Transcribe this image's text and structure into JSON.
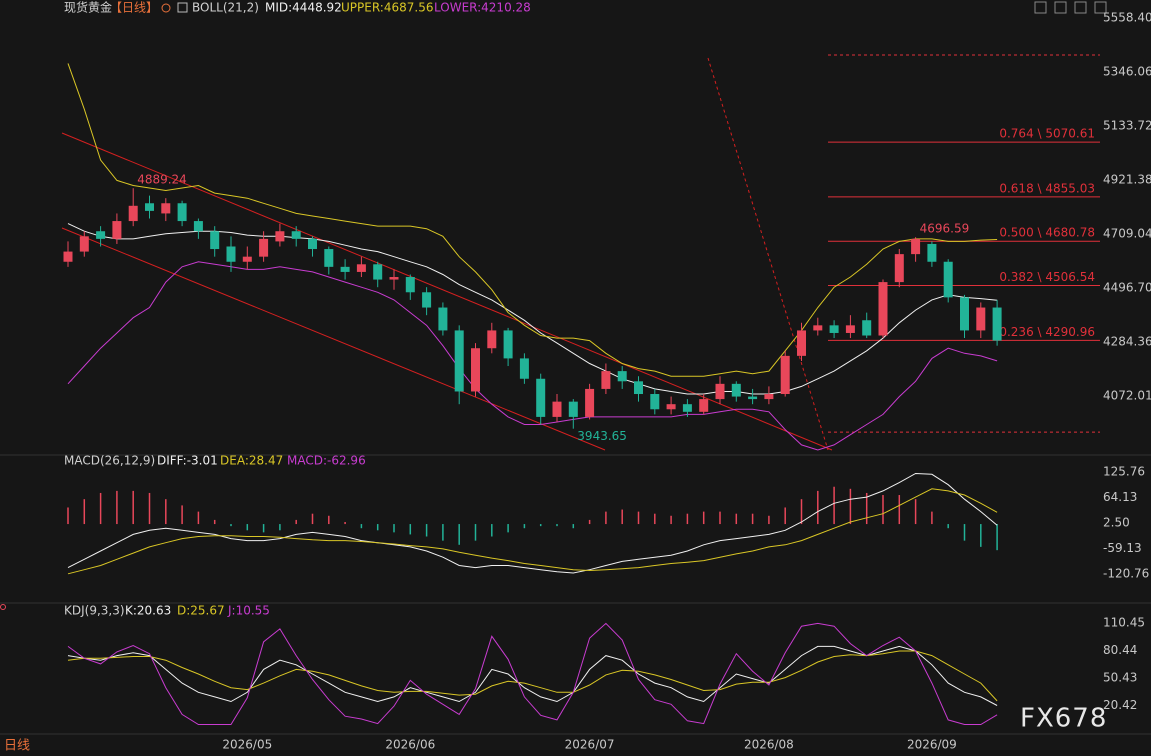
{
  "chart_data": [
    {
      "type": "candlestick",
      "title": "现货黄金",
      "period": "【日线】",
      "indicator": "BOLL(21,2)",
      "up_color": "#e8475a",
      "down_color": "#22b398",
      "categories": [
        null,
        null,
        null,
        null,
        null,
        null,
        null,
        null,
        null,
        null,
        null,
        "2026/05",
        null,
        null,
        null,
        null,
        null,
        null,
        null,
        null,
        null,
        "2026/06",
        null,
        null,
        null,
        null,
        null,
        null,
        null,
        null,
        null,
        null,
        "2026/07",
        null,
        null,
        null,
        null,
        null,
        null,
        null,
        null,
        null,
        null,
        "2026/08",
        null,
        null,
        null,
        null,
        null,
        null,
        null,
        null,
        null,
        "2026/09",
        null,
        null,
        null,
        null
      ],
      "ohlc": [
        [
          4600,
          4680,
          4580,
          4640
        ],
        [
          4640,
          4720,
          4620,
          4700
        ],
        [
          4720,
          4740,
          4660,
          4690
        ],
        [
          4690,
          4790,
          4670,
          4760
        ],
        [
          4760,
          4889.24,
          4740,
          4820
        ],
        [
          4830,
          4860,
          4770,
          4800
        ],
        [
          4790,
          4850,
          4760,
          4830
        ],
        [
          4830,
          4840,
          4740,
          4760
        ],
        [
          4760,
          4770,
          4690,
          4720
        ],
        [
          4720,
          4740,
          4620,
          4650
        ],
        [
          4660,
          4700,
          4560,
          4600
        ],
        [
          4600,
          4660,
          4570,
          4620
        ],
        [
          4620,
          4720,
          4600,
          4690
        ],
        [
          4680,
          4750,
          4660,
          4720
        ],
        [
          4720,
          4740,
          4660,
          4690
        ],
        [
          4690,
          4700,
          4620,
          4650
        ],
        [
          4650,
          4660,
          4550,
          4580
        ],
        [
          4580,
          4610,
          4530,
          4560
        ],
        [
          4560,
          4620,
          4540,
          4590
        ],
        [
          4590,
          4600,
          4500,
          4530
        ],
        [
          4530,
          4570,
          4490,
          4540
        ],
        [
          4540,
          4550,
          4450,
          4480
        ],
        [
          4480,
          4500,
          4390,
          4420
        ],
        [
          4420,
          4440,
          4310,
          4330
        ],
        [
          4330,
          4350,
          4040,
          4090
        ],
        [
          4090,
          4280,
          4070,
          4260
        ],
        [
          4260,
          4360,
          4240,
          4330
        ],
        [
          4330,
          4340,
          4190,
          4220
        ],
        [
          4220,
          4240,
          4120,
          4140
        ],
        [
          4140,
          4160,
          3960,
          3990
        ],
        [
          3990,
          4080,
          3970,
          4050
        ],
        [
          4050,
          4060,
          3943.65,
          3990
        ],
        [
          3990,
          4120,
          3980,
          4100
        ],
        [
          4100,
          4200,
          4080,
          4170
        ],
        [
          4170,
          4190,
          4100,
          4130
        ],
        [
          4130,
          4150,
          4050,
          4080
        ],
        [
          4080,
          4100,
          4000,
          4020
        ],
        [
          4020,
          4070,
          4000,
          4040
        ],
        [
          4040,
          4060,
          3990,
          4010
        ],
        [
          4010,
          4080,
          4000,
          4060
        ],
        [
          4060,
          4150,
          4040,
          4120
        ],
        [
          4120,
          4130,
          4050,
          4070
        ],
        [
          4070,
          4100,
          4040,
          4060
        ],
        [
          4060,
          4110,
          4040,
          4080
        ],
        [
          4080,
          4250,
          4070,
          4230
        ],
        [
          4230,
          4360,
          4210,
          4330
        ],
        [
          4330,
          4380,
          4310,
          4350
        ],
        [
          4350,
          4370,
          4300,
          4320
        ],
        [
          4320,
          4390,
          4300,
          4350
        ],
        [
          4370,
          4400,
          4300,
          4310
        ],
        [
          4310,
          4530,
          4300,
          4520
        ],
        [
          4520,
          4650,
          4500,
          4630
        ],
        [
          4630,
          4696.59,
          4600,
          4690
        ],
        [
          4670,
          4680,
          4580,
          4600
        ],
        [
          4600,
          4610,
          4440,
          4460
        ],
        [
          4460,
          4470,
          4300,
          4330
        ],
        [
          4330,
          4440,
          4300,
          4420
        ],
        [
          4420,
          4450,
          4270,
          4290
        ]
      ],
      "series": [
        {
          "name": "MID:4448.92",
          "color": "#f0f0f0",
          "values": [
            4750,
            4720,
            4700,
            4690,
            4690,
            4700,
            4710,
            4715,
            4720,
            4720,
            4715,
            4705,
            4700,
            4700,
            4695,
            4690,
            4680,
            4665,
            4650,
            4640,
            4620,
            4600,
            4580,
            4550,
            4510,
            4480,
            4450,
            4410,
            4370,
            4320,
            4280,
            4240,
            4200,
            4170,
            4140,
            4120,
            4100,
            4090,
            4080,
            4080,
            4090,
            4090,
            4080,
            4080,
            4090,
            4110,
            4140,
            4170,
            4210,
            4250,
            4300,
            4360,
            4410,
            4450,
            4470,
            4460,
            4455,
            4448.92
          ]
        },
        {
          "name": "UPPER:4687.56",
          "color": "#d9c626",
          "values": [
            5380,
            5200,
            5000,
            4920,
            4900,
            4890,
            4880,
            4890,
            4900,
            4870,
            4860,
            4850,
            4830,
            4810,
            4790,
            4780,
            4770,
            4760,
            4750,
            4740,
            4740,
            4740,
            4730,
            4700,
            4620,
            4560,
            4490,
            4400,
            4350,
            4310,
            4300,
            4300,
            4290,
            4240,
            4200,
            4180,
            4170,
            4150,
            4150,
            4150,
            4160,
            4170,
            4160,
            4170,
            4250,
            4330,
            4420,
            4500,
            4540,
            4590,
            4650,
            4680,
            4690,
            4690,
            4680,
            4680,
            4685,
            4687.56
          ]
        },
        {
          "name": "LOWER:4210.28",
          "color": "#c83cd0",
          "values": [
            4120,
            4190,
            4260,
            4320,
            4380,
            4420,
            4520,
            4580,
            4600,
            4590,
            4580,
            4570,
            4570,
            4580,
            4570,
            4560,
            4540,
            4520,
            4500,
            4480,
            4450,
            4400,
            4350,
            4270,
            4180,
            4100,
            4040,
            3990,
            3960,
            3960,
            3970,
            3980,
            3990,
            3990,
            3990,
            3990,
            3990,
            3990,
            4000,
            4000,
            4010,
            4020,
            4020,
            4010,
            3940,
            3880,
            3860,
            3880,
            3920,
            3960,
            4000,
            4070,
            4130,
            4220,
            4260,
            4240,
            4230,
            4210.28
          ]
        }
      ],
      "fib_color": "#e0303a",
      "fib_levels": [
        {
          "value": 5070.61,
          "label": "0.764 \\ 5070.61"
        },
        {
          "value": 4855.03,
          "label": "0.618 \\ 4855.03"
        },
        {
          "value": 4680.78,
          "label": "0.500 \\ 4680.78"
        },
        {
          "value": 4506.54,
          "label": "0.382 \\ 4506.54"
        },
        {
          "value": 4290.96,
          "label": "0.236 \\ 4290.96"
        }
      ],
      "fib_bounds": [
        3930,
        5413
      ],
      "annotations": [
        {
          "index": 4,
          "field": 1
        },
        {
          "index": 31,
          "field": 2
        },
        {
          "index": 52,
          "field": 1
        }
      ],
      "ylim": [
        3852,
        5558.4
      ],
      "yticks": [
        {
          "value": 5558.4,
          "label": "5558.40"
        },
        5346.06,
        5133.72,
        4921.38,
        4709.04,
        {
          "value": 4496.7,
          "label": "4496.70"
        },
        4284.36,
        4072.01
      ],
      "grid": false
    },
    {
      "type": "macd",
      "title": "MACD(26,12,9)",
      "pos_color": "#e8475a",
      "neg_color": "#22b398",
      "series": [
        {
          "name": "DIFF:-3.01",
          "color": "#f0f0f0",
          "values": [
            -105,
            -85,
            -65,
            -45,
            -25,
            -15,
            -10,
            -15,
            -20,
            -25,
            -35,
            -40,
            -40,
            -35,
            -25,
            -20,
            -25,
            -30,
            -40,
            -45,
            -50,
            -55,
            -65,
            -80,
            -100,
            -105,
            -100,
            -100,
            -105,
            -110,
            -115,
            -118,
            -110,
            -100,
            -90,
            -85,
            -80,
            -75,
            -65,
            -50,
            -40,
            -35,
            -30,
            -25,
            -15,
            5,
            30,
            50,
            60,
            65,
            80,
            100,
            122,
            120,
            95,
            60,
            30,
            -3.01
          ]
        },
        {
          "name": "DEA:28.47",
          "color": "#d9c626",
          "values": [
            -120,
            -110,
            -100,
            -85,
            -70,
            -55,
            -45,
            -35,
            -30,
            -28,
            -28,
            -30,
            -30,
            -32,
            -35,
            -38,
            -40,
            -40,
            -42,
            -45,
            -48,
            -52,
            -55,
            -60,
            -68,
            -75,
            -82,
            -88,
            -95,
            -100,
            -105,
            -110,
            -112,
            -110,
            -108,
            -105,
            -100,
            -95,
            -92,
            -88,
            -80,
            -72,
            -65,
            -55,
            -50,
            -40,
            -25,
            -10,
            5,
            15,
            25,
            45,
            65,
            85,
            80,
            70,
            50,
            28.47
          ]
        }
      ],
      "histogram": {
        "name": "MACD:-62.96",
        "color": "#c83cd0",
        "values": [
          40,
          60,
          75,
          80,
          80,
          75,
          60,
          45,
          30,
          10,
          -5,
          -15,
          -20,
          -15,
          10,
          25,
          20,
          5,
          -10,
          -15,
          -20,
          -25,
          -30,
          -40,
          -50,
          -40,
          -30,
          -20,
          -10,
          -5,
          -5,
          -10,
          10,
          30,
          35,
          30,
          25,
          20,
          25,
          30,
          30,
          25,
          25,
          20,
          40,
          60,
          80,
          90,
          85,
          75,
          70,
          70,
          60,
          30,
          -10,
          -40,
          -55,
          -62.96
        ]
      },
      "ylim": [
        -159,
        140
      ],
      "yticks": [
        125.76,
        64.13,
        {
          "value": 2.5,
          "label": "2.50"
        },
        -59.13,
        -120.76
      ],
      "grid": false
    },
    {
      "type": "kdj",
      "title": "KDJ(9,3,3)",
      "series": [
        {
          "name": "K:20.63",
          "color": "#f0f0f0",
          "values": [
            75,
            72,
            70,
            75,
            78,
            75,
            60,
            45,
            35,
            30,
            25,
            35,
            60,
            70,
            65,
            55,
            45,
            35,
            30,
            25,
            30,
            40,
            35,
            30,
            25,
            35,
            60,
            55,
            40,
            30,
            25,
            35,
            60,
            75,
            70,
            55,
            45,
            40,
            30,
            25,
            40,
            55,
            50,
            45,
            60,
            75,
            85,
            85,
            80,
            75,
            80,
            85,
            80,
            65,
            45,
            35,
            30,
            20.63
          ]
        },
        {
          "name": "D:25.67",
          "color": "#d9c626",
          "values": [
            70,
            72,
            72,
            73,
            74,
            74,
            70,
            62,
            55,
            47,
            40,
            38,
            45,
            53,
            60,
            58,
            54,
            48,
            42,
            37,
            35,
            36,
            36,
            34,
            32,
            33,
            42,
            47,
            45,
            40,
            35,
            35,
            43,
            54,
            59,
            58,
            54,
            49,
            43,
            37,
            38,
            44,
            46,
            46,
            51,
            59,
            68,
            74,
            76,
            75,
            77,
            80,
            80,
            75,
            65,
            55,
            45,
            25.67
          ]
        },
        {
          "name": "J:10.55",
          "color": "#c83cd0",
          "values": [
            85,
            72,
            66,
            79,
            86,
            77,
            40,
            11,
            0,
            0,
            0,
            29,
            90,
            104,
            75,
            49,
            27,
            9,
            6,
            1,
            20,
            48,
            33,
            22,
            11,
            39,
            96,
            71,
            30,
            10,
            5,
            35,
            94,
            110,
            92,
            49,
            27,
            22,
            4,
            1,
            44,
            77,
            58,
            43,
            78,
            107,
            110,
            107,
            88,
            75,
            86,
            95,
            80,
            45,
            5,
            0,
            0,
            10.55
          ]
        }
      ],
      "ylim": [
        -6,
        117
      ],
      "yticks": [
        110.45,
        80.44,
        50.43,
        20.42
      ],
      "grid": false
    }
  ],
  "period_label": "日线",
  "watermark": "FX678"
}
